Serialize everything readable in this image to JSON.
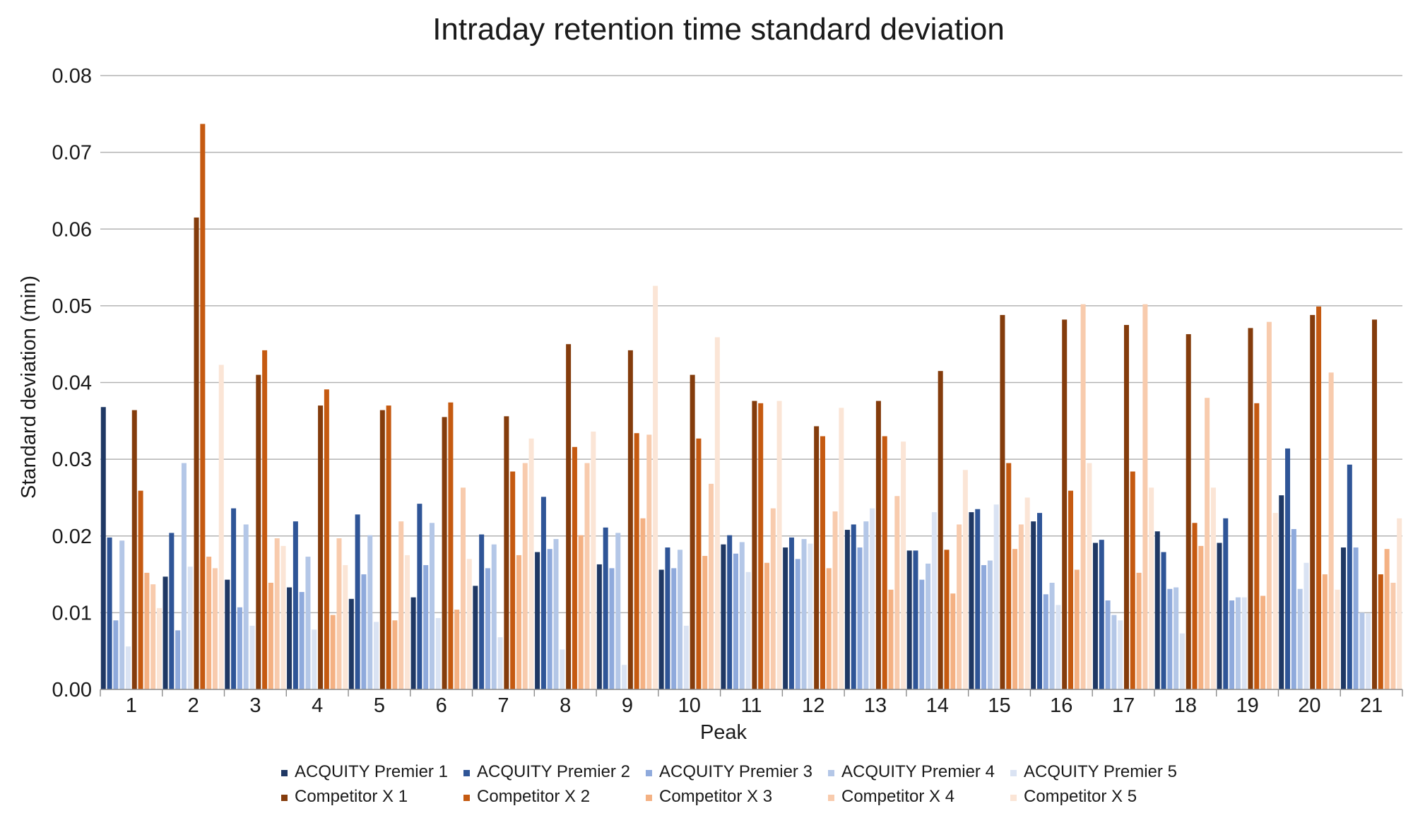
{
  "chart_data": {
    "type": "bar",
    "title": "Intraday retention time standard deviation",
    "xlabel": "Peak",
    "ylabel": "Standard deviation (min)",
    "ylim": [
      0,
      0.08
    ],
    "yticks": [
      "0.00",
      "0.01",
      "0.02",
      "0.03",
      "0.04",
      "0.05",
      "0.06",
      "0.07",
      "0.08"
    ],
    "grid": true,
    "legend": "bottom",
    "categories": [
      "1",
      "2",
      "3",
      "4",
      "5",
      "6",
      "7",
      "8",
      "9",
      "10",
      "11",
      "12",
      "13",
      "14",
      "15",
      "16",
      "17",
      "18",
      "19",
      "20",
      "21"
    ],
    "series": [
      {
        "name": "ACQUITY Premier 1",
        "color": "#1f3864",
        "values": [
          0.0368,
          0.0147,
          0.0143,
          0.0133,
          0.0118,
          0.012,
          0.0135,
          0.0179,
          0.0163,
          0.0156,
          0.0189,
          0.0185,
          0.0208,
          0.0181,
          0.0231,
          0.0219,
          0.0191,
          0.0206,
          0.0191,
          0.0253,
          0.0185
        ]
      },
      {
        "name": "ACQUITY Premier 2",
        "color": "#2f5597",
        "values": [
          0.0198,
          0.0204,
          0.0236,
          0.0219,
          0.0228,
          0.0242,
          0.0202,
          0.0251,
          0.0211,
          0.0185,
          0.0201,
          0.0198,
          0.0215,
          0.0181,
          0.0235,
          0.023,
          0.0195,
          0.0179,
          0.0223,
          0.0314,
          0.0293
        ]
      },
      {
        "name": "ACQUITY Premier 3",
        "color": "#8faadc",
        "values": [
          0.009,
          0.0077,
          0.0107,
          0.0127,
          0.015,
          0.0162,
          0.0158,
          0.0183,
          0.0158,
          0.0158,
          0.0177,
          0.017,
          0.0185,
          0.0143,
          0.0162,
          0.0124,
          0.0116,
          0.0131,
          0.0116,
          0.0209,
          0.0185
        ]
      },
      {
        "name": "ACQUITY Premier 4",
        "color": "#b4c7e7",
        "values": [
          0.0194,
          0.0295,
          0.0215,
          0.0173,
          0.0201,
          0.0217,
          0.0189,
          0.0196,
          0.0204,
          0.0182,
          0.0192,
          0.0196,
          0.0219,
          0.0164,
          0.0168,
          0.0139,
          0.0097,
          0.0133,
          0.012,
          0.0131,
          0.01
        ]
      },
      {
        "name": "ACQUITY Premier 5",
        "color": "#dae3f3",
        "values": [
          0.0056,
          0.016,
          0.0083,
          0.0078,
          0.0088,
          0.0093,
          0.0068,
          0.0052,
          0.0032,
          0.0083,
          0.0153,
          0.019,
          0.0236,
          0.0231,
          0.0241,
          0.011,
          0.009,
          0.0073,
          0.012,
          0.0165,
          0.0099
        ]
      },
      {
        "name": "Competitor X 1",
        "color": "#843c0c",
        "values": [
          0.0364,
          0.0615,
          0.041,
          0.037,
          0.0364,
          0.0355,
          0.0356,
          0.045,
          0.0442,
          0.041,
          0.0376,
          0.0343,
          0.0376,
          0.0415,
          0.0488,
          0.0482,
          0.0475,
          0.0463,
          0.0471,
          0.0488,
          0.0482
        ]
      },
      {
        "name": "Competitor X 2",
        "color": "#c55a11",
        "values": [
          0.0259,
          0.0737,
          0.0442,
          0.0391,
          0.037,
          0.0374,
          0.0284,
          0.0316,
          0.0334,
          0.0327,
          0.0373,
          0.033,
          0.033,
          0.0182,
          0.0295,
          0.0259,
          0.0284,
          0.0217,
          0.0373,
          0.0499,
          0.015
        ]
      },
      {
        "name": "Competitor X 3",
        "color": "#f4b183",
        "values": [
          0.0152,
          0.0173,
          0.0139,
          0.0097,
          0.009,
          0.0104,
          0.0175,
          0.0201,
          0.0223,
          0.0174,
          0.0165,
          0.0158,
          0.013,
          0.0125,
          0.0183,
          0.0156,
          0.0152,
          0.0187,
          0.0122,
          0.015,
          0.0183
        ]
      },
      {
        "name": "Competitor X 4",
        "color": "#f8cbad",
        "values": [
          0.0137,
          0.0158,
          0.0197,
          0.0197,
          0.0219,
          0.0263,
          0.0295,
          0.0295,
          0.0332,
          0.0268,
          0.0236,
          0.0232,
          0.0252,
          0.0215,
          0.0215,
          0.0502,
          0.0502,
          0.038,
          0.0479,
          0.0413,
          0.0139
        ]
      },
      {
        "name": "Competitor X 5",
        "color": "#fbe5d6",
        "values": [
          0.0106,
          0.0423,
          0.0187,
          0.0162,
          0.0175,
          0.017,
          0.0327,
          0.0336,
          0.0526,
          0.0459,
          0.0376,
          0.0367,
          0.0323,
          0.0286,
          0.025,
          0.0295,
          0.0263,
          0.0263,
          0.023,
          0.013,
          0.0223
        ]
      }
    ]
  }
}
